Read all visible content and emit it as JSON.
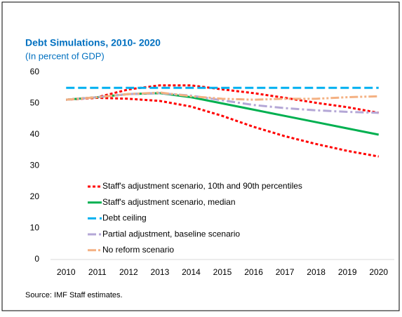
{
  "chart_data": {
    "type": "line",
    "title": "Debt Simulations, 2010- 2020",
    "subtitle": "(In percent of GDP)",
    "source": "Source: IMF Staff estimates.",
    "categories": [
      "2010",
      "2011",
      "2012",
      "2013",
      "2014",
      "2015",
      "2016",
      "2017",
      "2018",
      "2019",
      "2020"
    ],
    "ylim": [
      0,
      60
    ],
    "yticks": [
      0,
      10,
      20,
      30,
      40,
      50,
      60
    ],
    "series": [
      {
        "name": "Staff's adjustment scenario, 10th and 90th percentiles",
        "color": "#ff0000",
        "dash": "4,3",
        "values": [
          51.2,
          51.8,
          51.5,
          50.8,
          49,
          46,
          42.5,
          39.5,
          37,
          34.8,
          33
        ],
        "values_upper": [
          51.2,
          52,
          54.5,
          55.8,
          55.8,
          54.5,
          53.3,
          51.8,
          50.2,
          48.8,
          47
        ]
      },
      {
        "name": "Staff's adjustment scenario, median",
        "color": "#00b050",
        "dash": "",
        "values": [
          51.2,
          52,
          53,
          53.3,
          52,
          50,
          48,
          46,
          44,
          42,
          40
        ]
      },
      {
        "name": "Debt ceiling",
        "color": "#00b0f0",
        "dash": "12,5",
        "values": [
          55,
          55,
          55,
          55,
          55,
          55,
          55,
          55,
          55,
          55,
          55
        ]
      },
      {
        "name": "Partial adjustment, baseline scenario",
        "color": "#b4a7d6",
        "dash": "12,4,3,4",
        "values": [
          51.2,
          52,
          53,
          53.3,
          52.5,
          51,
          49.5,
          48.5,
          47.8,
          47.3,
          47
        ]
      },
      {
        "name": "No reform scenario",
        "color": "#f4b183",
        "dash": "12,3,3,3,3,3",
        "values": [
          51.2,
          52,
          53,
          53.5,
          52.3,
          51.5,
          51.2,
          51.5,
          51.5,
          52,
          52.3
        ]
      }
    ]
  }
}
